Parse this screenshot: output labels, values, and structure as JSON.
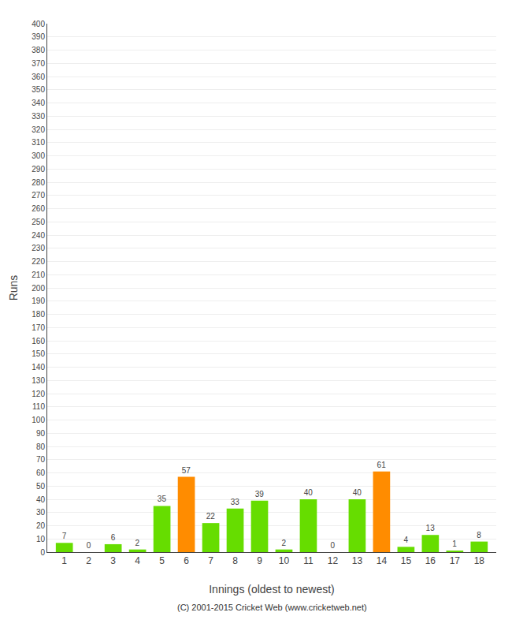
{
  "chart_data": {
    "type": "bar",
    "xlabel": "Innings (oldest to newest)",
    "ylabel": "Runs",
    "categories": [
      "1",
      "2",
      "3",
      "4",
      "5",
      "6",
      "7",
      "8",
      "9",
      "10",
      "11",
      "12",
      "13",
      "14",
      "15",
      "16",
      "17",
      "18"
    ],
    "values": [
      7,
      0,
      6,
      2,
      35,
      57,
      22,
      33,
      39,
      2,
      40,
      0,
      40,
      61,
      4,
      13,
      1,
      8
    ],
    "colors": [
      "#66dd00",
      "#66dd00",
      "#66dd00",
      "#66dd00",
      "#66dd00",
      "#ff8c00",
      "#66dd00",
      "#66dd00",
      "#66dd00",
      "#66dd00",
      "#66dd00",
      "#66dd00",
      "#66dd00",
      "#ff8c00",
      "#66dd00",
      "#66dd00",
      "#66dd00",
      "#66dd00"
    ],
    "ylim": [
      0,
      400
    ],
    "yticks": [
      0,
      10,
      20,
      30,
      40,
      50,
      60,
      70,
      80,
      90,
      100,
      110,
      120,
      130,
      140,
      150,
      160,
      170,
      180,
      190,
      200,
      210,
      220,
      230,
      240,
      250,
      260,
      270,
      280,
      290,
      300,
      310,
      320,
      330,
      340,
      350,
      360,
      370,
      380,
      390,
      400
    ],
    "grid": true,
    "data_labels": true,
    "annotations": [
      "(C) 2001-2015 Cricket Web (www.cricketweb.net)"
    ]
  }
}
